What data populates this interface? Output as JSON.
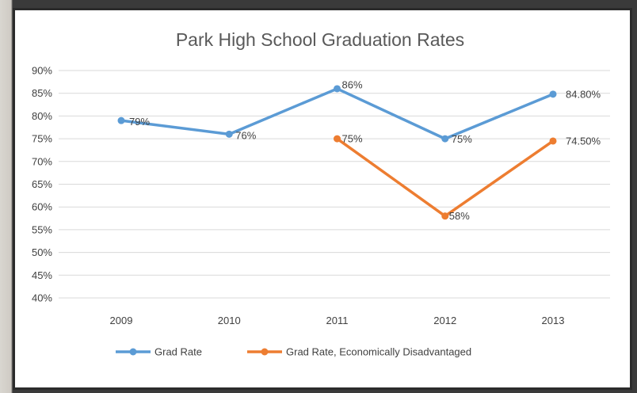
{
  "chart_data": {
    "type": "line",
    "title": "Park High School Graduation Rates",
    "xlabel": "",
    "ylabel": "",
    "categories": [
      "2009",
      "2010",
      "2011",
      "2012",
      "2013"
    ],
    "ylim": [
      0.4,
      0.9
    ],
    "yticks": [
      "40%",
      "45%",
      "50%",
      "55%",
      "60%",
      "65%",
      "70%",
      "75%",
      "80%",
      "85%",
      "90%"
    ],
    "grid": true,
    "legend_position": "bottom",
    "series": [
      {
        "name": "Grad Rate",
        "color": "#5b9bd5",
        "values": [
          0.79,
          0.76,
          0.86,
          0.75,
          0.848
        ],
        "labels": [
          "79%",
          "76%",
          "86%",
          "75%",
          "84.80%"
        ]
      },
      {
        "name": "Grad Rate, Economically Disadvantaged",
        "color": "#ed7d31",
        "values": [
          null,
          null,
          0.75,
          0.58,
          0.745
        ],
        "labels": [
          "",
          "",
          "75%",
          "58%",
          "74.50%"
        ]
      }
    ]
  }
}
